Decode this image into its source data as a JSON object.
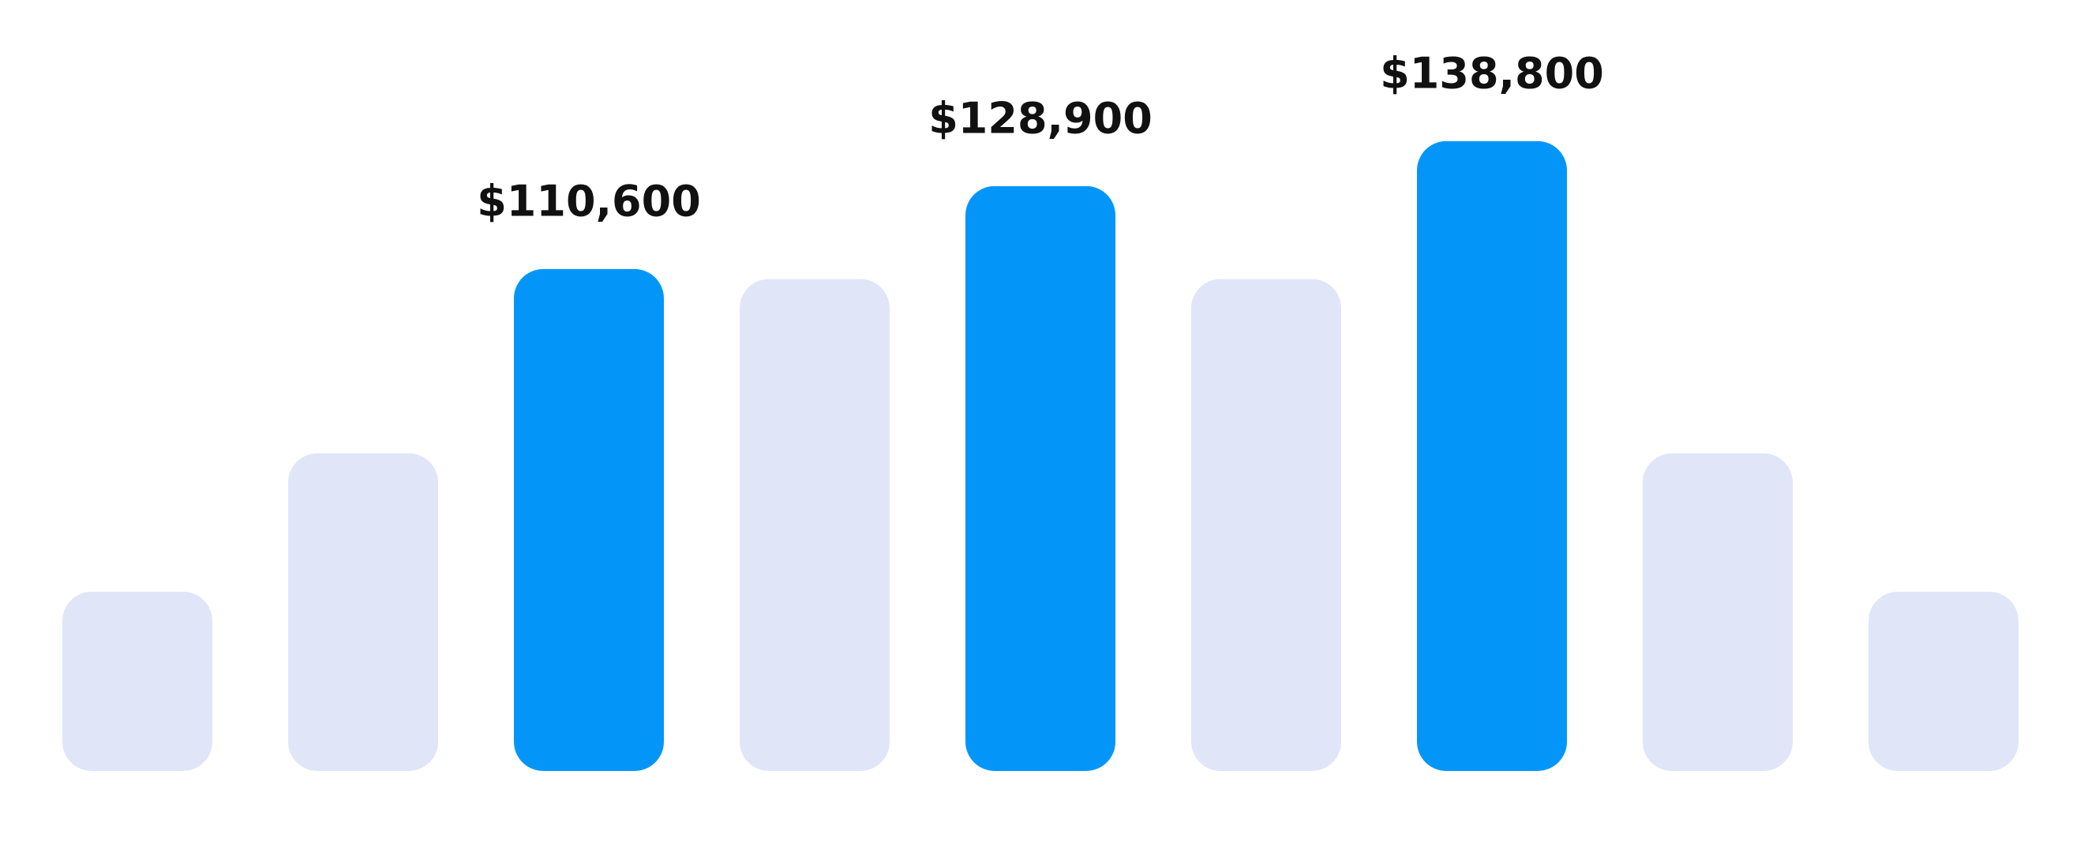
{
  "chart_data": {
    "type": "bar",
    "categories": [
      null,
      null,
      null,
      null,
      null,
      null,
      null,
      null,
      null
    ],
    "values": [
      39500,
      70000,
      110600,
      108400,
      128900,
      108400,
      138800,
      70000,
      39500
    ],
    "value_labels": [
      null,
      null,
      "$110,600",
      null,
      "$128,900",
      null,
      "$138,800",
      null,
      null
    ],
    "colors": [
      "#e0e5f8",
      "#e0e5f8",
      "#0396f8",
      "#e0e5f8",
      "#0396f8",
      "#e0e5f8",
      "#0396f8",
      "#e0e5f8",
      "#e0e5f8"
    ],
    "ylim": [
      0,
      140000
    ]
  }
}
